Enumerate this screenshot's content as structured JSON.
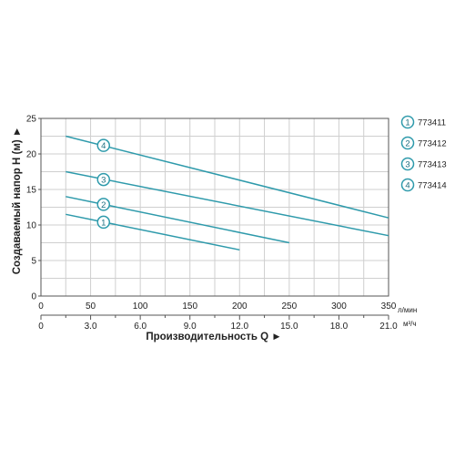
{
  "chart_data": {
    "type": "line",
    "ylabel": "Создаваемый напор H (м) ►",
    "xlabel": "Производительность Q ►",
    "x_unit_primary": "л/мин",
    "x_unit_secondary": "м³/ч",
    "ylim": [
      0,
      25
    ],
    "xlim": [
      0,
      350
    ],
    "y_ticks": [
      "0",
      "5",
      "10",
      "15",
      "20",
      "25"
    ],
    "x_ticks_primary": [
      {
        "value": 0,
        "label": "0"
      },
      {
        "value": 50,
        "label": "50"
      },
      {
        "value": 100,
        "label": "100"
      },
      {
        "value": 150,
        "label": "150"
      },
      {
        "value": 200,
        "label": "200"
      },
      {
        "value": 250,
        "label": "250"
      },
      {
        "value": 300,
        "label": "300"
      },
      {
        "value": 350,
        "label": "350"
      }
    ],
    "x_ticks_secondary": [
      {
        "value": 0,
        "label": "0"
      },
      {
        "value": 50,
        "label": "3.0"
      },
      {
        "value": 100,
        "label": "6.0"
      },
      {
        "value": 150,
        "label": "9.0"
      },
      {
        "value": 200,
        "label": "12.0"
      },
      {
        "value": 250,
        "label": "15.0"
      },
      {
        "value": 300,
        "label": "18.0"
      },
      {
        "value": 350,
        "label": "21.0"
      }
    ],
    "grid": true,
    "legend_placement": "right",
    "line_color": "#2e9aab",
    "series": [
      {
        "marker": "1",
        "name": "773411",
        "x": [
          25,
          200
        ],
        "y": [
          11.5,
          6.5
        ],
        "marker_at": [
          63,
          10.4
        ]
      },
      {
        "marker": "2",
        "name": "773412",
        "x": [
          25,
          250
        ],
        "y": [
          14,
          7.5
        ],
        "marker_at": [
          63,
          12.9
        ]
      },
      {
        "marker": "3",
        "name": "773413",
        "x": [
          25,
          350
        ],
        "y": [
          17.5,
          8.5
        ],
        "marker_at": [
          63,
          16.4
        ]
      },
      {
        "marker": "4",
        "name": "773414",
        "x": [
          25,
          350
        ],
        "y": [
          22.5,
          11
        ],
        "marker_at": [
          63,
          21.2
        ]
      }
    ]
  }
}
